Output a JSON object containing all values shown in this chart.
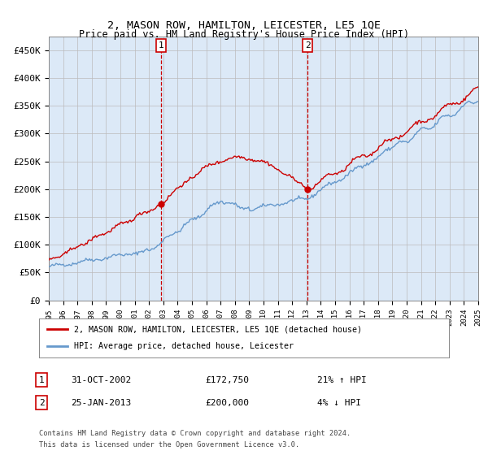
{
  "title": "2, MASON ROW, HAMILTON, LEICESTER, LE5 1QE",
  "subtitle": "Price paid vs. HM Land Registry's House Price Index (HPI)",
  "plot_bg_color": "#dce9f7",
  "yticks": [
    0,
    50000,
    100000,
    150000,
    200000,
    250000,
    300000,
    350000,
    400000,
    450000
  ],
  "ylim": [
    0,
    475000
  ],
  "sale1_date_idx": 7.83,
  "sale1_price": 172750,
  "sale1_label": "1",
  "sale1_date_str": "31-OCT-2002",
  "sale1_hpi_pct": "21% ↑ HPI",
  "sale2_date_idx": 18.07,
  "sale2_price": 200000,
  "sale2_label": "2",
  "sale2_date_str": "25-JAN-2013",
  "sale2_hpi_pct": "4% ↓ HPI",
  "legend_label1": "2, MASON ROW, HAMILTON, LEICESTER, LE5 1QE (detached house)",
  "legend_label2": "HPI: Average price, detached house, Leicester",
  "footer_line1": "Contains HM Land Registry data © Crown copyright and database right 2024.",
  "footer_line2": "This data is licensed under the Open Government Licence v3.0.",
  "line_color_red": "#cc0000",
  "line_color_blue": "#6699cc",
  "vline_color": "#cc0000",
  "n_years": 30,
  "start_year": 1995,
  "end_year": 2025
}
